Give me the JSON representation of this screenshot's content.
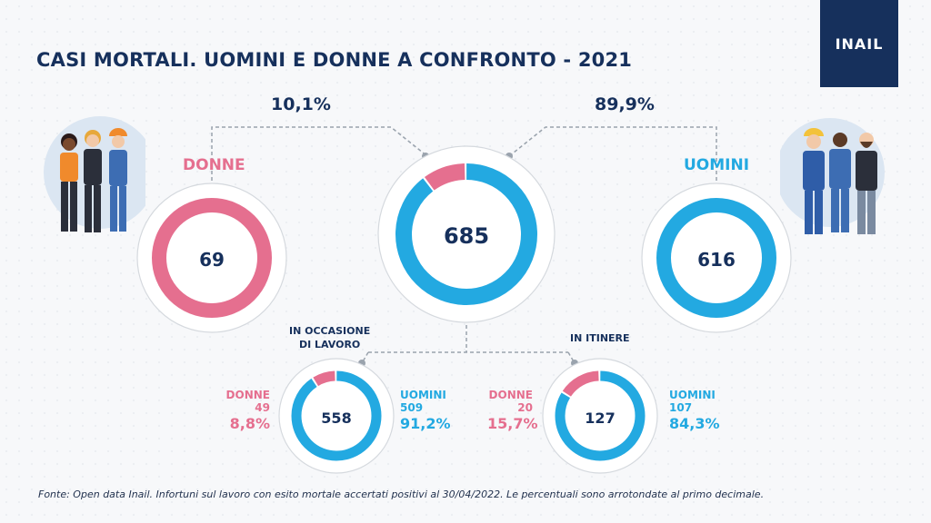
{
  "title": "CASI MORTALI. UOMINI E DONNE A CONFRONTO - 2021",
  "logo": "INAIL",
  "footer": "Fonte: Open data Inail. Infortuni sul lavoro con esito mortale accertati positivi al 30/04/2022.  Le percentuali sono arrotondate al primo decimale.",
  "colors": {
    "women": "#e56f8f",
    "men": "#23a9e1",
    "text": "#16305c"
  },
  "chart_data": [
    {
      "type": "pie",
      "donut": true,
      "total_label": "685",
      "series": [
        {
          "name": "DONNE",
          "value": 69,
          "percent_label": "10,1%"
        },
        {
          "name": "UOMINI",
          "value": 616,
          "percent_label": "89,9%"
        }
      ]
    },
    {
      "type": "pie",
      "donut": true,
      "total_label": "69",
      "series": [
        {
          "name": "DONNE",
          "value": 69
        }
      ]
    },
    {
      "type": "pie",
      "donut": true,
      "total_label": "616",
      "series": [
        {
          "name": "UOMINI",
          "value": 616
        }
      ]
    },
    {
      "type": "pie",
      "donut": true,
      "title": "IN OCCASIONE DI LAVORO",
      "total_label": "558",
      "series": [
        {
          "name": "DONNE",
          "value": 49,
          "percent_label": "8,8%"
        },
        {
          "name": "UOMINI",
          "value": 509,
          "percent_label": "91,2%"
        }
      ]
    },
    {
      "type": "pie",
      "donut": true,
      "title": "IN ITINERE",
      "total_label": "127",
      "series": [
        {
          "name": "DONNE",
          "value": 20,
          "percent_label": "15,7%"
        },
        {
          "name": "UOMINI",
          "value": 107,
          "percent_label": "84,3%"
        }
      ]
    }
  ],
  "labels": {
    "women": "DONNE",
    "men": "UOMINI",
    "women_pct": "10,1%",
    "men_pct": "89,9%",
    "work_line1": "IN OCCASIONE",
    "work_line2": "DI LAVORO",
    "commute": "IN ITINERE",
    "work_women_value": "49",
    "work_men_value": "509",
    "work_women_pct": "8,8%",
    "work_men_pct": "91,2%",
    "commute_women_value": "20",
    "commute_men_value": "107",
    "commute_women_pct": "15,7%",
    "commute_men_pct": "84,3%"
  }
}
